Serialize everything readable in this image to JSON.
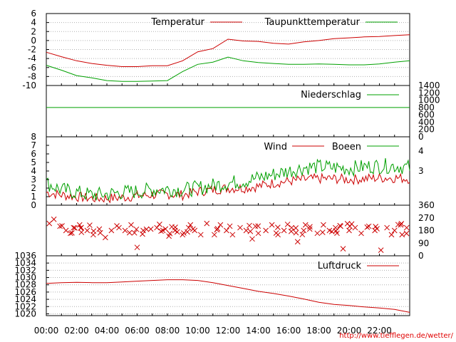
{
  "source_link": "http://www.tiefflegen.de/wetter/",
  "x_ticks": [
    "00:00",
    "02:00",
    "04:00",
    "06:00",
    "08:00",
    "10:00",
    "12:00",
    "14:00",
    "16:00",
    "18:00",
    "20:00",
    "22:00"
  ],
  "colors": {
    "red": "#cc0000",
    "green": "#00a000",
    "grid": "#b0b0b0"
  },
  "chart_data": [
    {
      "type": "line",
      "panel": "temperature",
      "x": [
        0,
        1,
        2,
        3,
        4,
        5,
        6,
        7,
        8,
        9,
        10,
        11,
        12,
        13,
        14,
        15,
        16,
        17,
        18,
        19,
        20,
        21,
        22,
        23,
        24
      ],
      "series": [
        {
          "name": "Temperatur",
          "color": "#cc0000",
          "values": [
            -2.6,
            -3.6,
            -4.5,
            -5.1,
            -5.5,
            -5.8,
            -5.8,
            -5.6,
            -5.6,
            -4.5,
            -2.5,
            -1.8,
            0.3,
            -0.1,
            -0.2,
            -0.6,
            -0.8,
            -0.3,
            0.0,
            0.4,
            0.6,
            0.8,
            0.9,
            1.1,
            1.3
          ]
        },
        {
          "name": "Taupunkttemperatur",
          "color": "#00a000",
          "values": [
            -5.5,
            -6.6,
            -7.8,
            -8.3,
            -8.9,
            -9.1,
            -9.1,
            -9.0,
            -8.9,
            -6.9,
            -5.3,
            -4.8,
            -3.7,
            -4.5,
            -4.9,
            -5.1,
            -5.3,
            -5.3,
            -5.2,
            -5.3,
            -5.4,
            -5.4,
            -5.2,
            -4.8,
            -4.5
          ]
        }
      ],
      "ylim": [
        -10,
        6
      ],
      "yticks": [
        "-10",
        "-8",
        "-6",
        "-4",
        "-2",
        "0",
        "2",
        "4",
        "6"
      ]
    },
    {
      "type": "line",
      "panel": "precipitation",
      "x": [
        0,
        24
      ],
      "series": [
        {
          "name": "Niederschlag",
          "color": "#00a000",
          "values": [
            800,
            800
          ]
        }
      ],
      "ylim": [
        0,
        1400
      ],
      "yticks_right": [
        "0",
        "200",
        "400",
        "600",
        "800",
        "1000",
        "1200",
        "1400"
      ]
    },
    {
      "type": "line",
      "panel": "wind",
      "x": [
        0,
        1,
        2,
        3,
        4,
        5,
        6,
        7,
        8,
        9,
        10,
        11,
        12,
        13,
        14,
        15,
        16,
        17,
        18,
        19,
        20,
        21,
        22,
        23,
        24
      ],
      "series": [
        {
          "name": "Wind",
          "color": "#cc0000",
          "values": [
            1.5,
            1.2,
            1.0,
            0.8,
            0.8,
            0.9,
            1.1,
            1.2,
            1.3,
            1.2,
            1.6,
            1.8,
            2.0,
            2.0,
            2.2,
            2.6,
            2.8,
            3.0,
            3.1,
            3.1,
            3.0,
            3.1,
            3.2,
            3.2,
            3.1
          ]
        },
        {
          "name": "Boeen",
          "color": "#00a000",
          "values": [
            2.6,
            1.8,
            1.5,
            1.2,
            1.3,
            1.5,
            1.6,
            1.8,
            1.9,
            1.8,
            2.0,
            2.3,
            2.6,
            2.8,
            3.2,
            3.6,
            4.0,
            4.4,
            4.5,
            4.4,
            4.3,
            4.5,
            4.6,
            4.6,
            4.4
          ]
        }
      ],
      "ylim": [
        0,
        8
      ],
      "yticks": [
        "0",
        "1",
        "2",
        "3",
        "4",
        "5",
        "6",
        "7",
        "8"
      ],
      "yticks_right": [
        "3",
        "4"
      ]
    },
    {
      "type": "scatter",
      "panel": "wind-direction",
      "marker": "x",
      "color": "#cc0000",
      "x": [
        0.2,
        0.5,
        0.9,
        1.3,
        1.8,
        2.2,
        2.7,
        3.1,
        3.5,
        3.9,
        4.3,
        4.8,
        5.2,
        5.6,
        6.0,
        6.4,
        6.9,
        7.3,
        7.7,
        8.1,
        8.5,
        9.0,
        9.4,
        9.8,
        10.2,
        10.6,
        11.1,
        11.5,
        11.9,
        12.3,
        12.8,
        13.2,
        13.6,
        14.0,
        14.5,
        14.9,
        15.3,
        15.7,
        16.2,
        16.6,
        17.0,
        17.4,
        17.9,
        18.3,
        18.7,
        19.1,
        19.6,
        20.0,
        20.4,
        20.8,
        21.3,
        21.7,
        22.1,
        22.5,
        23.0,
        23.4,
        23.8
      ],
      "values": [
        230,
        260,
        210,
        180,
        200,
        220,
        180,
        150,
        190,
        130,
        180,
        200,
        180,
        220,
        60,
        180,
        190,
        200,
        180,
        140,
        180,
        150,
        200,
        180,
        150,
        230,
        150,
        220,
        180,
        150,
        200,
        180,
        120,
        160,
        180,
        220,
        150,
        180,
        200,
        100,
        180,
        190,
        160,
        220,
        180,
        200,
        50,
        180,
        200,
        160,
        210,
        180,
        40,
        200,
        180,
        220,
        200
      ],
      "ylim": [
        0,
        360
      ],
      "yticks_right": [
        "0",
        "90",
        "180",
        "270",
        "360"
      ]
    },
    {
      "type": "line",
      "panel": "pressure",
      "x": [
        0,
        1,
        2,
        3,
        4,
        5,
        6,
        7,
        8,
        9,
        10,
        11,
        12,
        13,
        14,
        15,
        16,
        17,
        18,
        19,
        20,
        21,
        22,
        23,
        24
      ],
      "series": [
        {
          "name": "Luftdruck",
          "color": "#cc0000",
          "values": [
            1028.4,
            1028.6,
            1028.7,
            1028.6,
            1028.6,
            1028.8,
            1029.0,
            1029.2,
            1029.4,
            1029.4,
            1029.2,
            1028.6,
            1027.8,
            1027.0,
            1026.2,
            1025.6,
            1024.9,
            1024.1,
            1023.2,
            1022.6,
            1022.3,
            1021.9,
            1021.6,
            1021.2,
            1020.4
          ]
        }
      ],
      "ylim": [
        1019.5,
        1036
      ],
      "yticks": [
        "1020",
        "1022",
        "1024",
        "1026",
        "1028",
        "1030",
        "1032",
        "1034",
        "1036"
      ]
    }
  ]
}
